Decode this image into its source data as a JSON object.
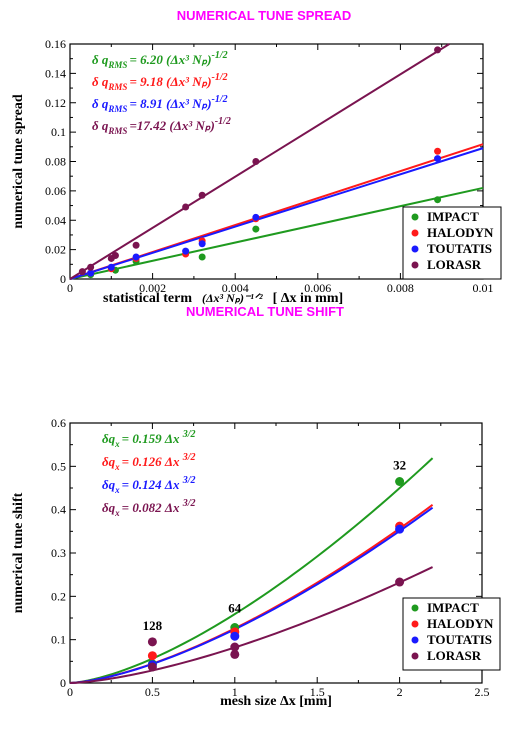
{
  "colors": {
    "IMPACT": "#1f9a1f",
    "HALODYN": "#ff1a1a",
    "TOUTATIS": "#1a1aff",
    "LORASR": "#7a1450",
    "title": "#ff00ff"
  },
  "chart_data": [
    {
      "type": "scatter",
      "title": "NUMERICAL TUNE SPREAD",
      "xlabel": "statistical term",
      "xlabel_formula": "(Δx³ Nₚ)⁻¹ᐟ²",
      "xlabel_unit": "[ Δx in  mm]",
      "ylabel": "numerical tune spread",
      "xlim": [
        0,
        0.01
      ],
      "ylim": [
        0,
        0.16
      ],
      "xticks": [
        "0",
        "0.002",
        "0.004",
        "0.006",
        "0.008",
        "0.01"
      ],
      "yticks": [
        "0",
        "0.02",
        "0.04",
        "0.06",
        "0.08",
        "0.1",
        "0.12",
        "0.14",
        "0.16"
      ],
      "grid": false,
      "legend": "lower-right",
      "annotations": [
        {
          "series": "IMPACT",
          "prefix": "δ q",
          "sub": "RMS",
          "coef": "= 6.20",
          "body": " (Δx³ Nₚ)",
          "exp": "-1/2"
        },
        {
          "series": "HALODYN",
          "prefix": "δ q",
          "sub": "RMS",
          "coef": "= 9.18",
          "body": " (Δx³ Nₚ)",
          "exp": "-1/2"
        },
        {
          "series": "TOUTATIS",
          "prefix": "δ q",
          "sub": "RMS",
          "coef": "= 8.91",
          "body": " (Δx³ Nₚ)",
          "exp": "-1/2"
        },
        {
          "series": "LORASR",
          "prefix": "δ q",
          "sub": "RMS",
          "coef": "=17.42",
          "body": " (Δx³ Nₚ)",
          "exp": "-1/2"
        }
      ],
      "series": [
        {
          "name": "IMPACT",
          "fit_slope": 6.2,
          "points": [
            [
              0.0005,
              0.003
            ],
            [
              0.0011,
              0.006
            ],
            [
              0.0016,
              0.012
            ],
            [
              0.0032,
              0.015
            ],
            [
              0.0045,
              0.034
            ],
            [
              0.0089,
              0.054
            ]
          ]
        },
        {
          "name": "HALODYN",
          "fit_slope": 9.18,
          "points": [
            [
              0.0005,
              0.004
            ],
            [
              0.001,
              0.007
            ],
            [
              0.0016,
              0.014
            ],
            [
              0.0028,
              0.017
            ],
            [
              0.0032,
              0.026
            ],
            [
              0.0045,
              0.041
            ],
            [
              0.0089,
              0.087
            ]
          ]
        },
        {
          "name": "TOUTATIS",
          "fit_slope": 8.91,
          "points": [
            [
              0.0005,
              0.004
            ],
            [
              0.001,
              0.008
            ],
            [
              0.0016,
              0.015
            ],
            [
              0.0028,
              0.019
            ],
            [
              0.0032,
              0.024
            ],
            [
              0.0045,
              0.042
            ],
            [
              0.0089,
              0.082
            ]
          ]
        },
        {
          "name": "LORASR",
          "fit_slope": 17.42,
          "points": [
            [
              0.0003,
              0.005
            ],
            [
              0.0005,
              0.008
            ],
            [
              0.001,
              0.014
            ],
            [
              0.0011,
              0.016
            ],
            [
              0.0016,
              0.023
            ],
            [
              0.0028,
              0.049
            ],
            [
              0.0032,
              0.057
            ],
            [
              0.0045,
              0.08
            ],
            [
              0.0089,
              0.156
            ]
          ]
        }
      ]
    },
    {
      "type": "scatter",
      "title": "NUMERICAL TUNE SHIFT",
      "xlabel": "mesh size  Δx  [mm]",
      "ylabel": "numerical tune shift",
      "xlim": [
        0,
        2.5
      ],
      "ylim": [
        0,
        0.6
      ],
      "xticks": [
        "0",
        "0.5",
        "1",
        "1.5",
        "2",
        "2.5"
      ],
      "yticks": [
        "0",
        "0.1",
        "0.2",
        "0.3",
        "0.4",
        "0.5",
        "0.6"
      ],
      "grid": false,
      "legend": "lower-right",
      "annotations": [
        {
          "series": "IMPACT",
          "prefix": "δq",
          "sub": "x",
          "coef": "= 0.159",
          "body": "  Δx ",
          "exp": "3/2"
        },
        {
          "series": "HALODYN",
          "prefix": "δq",
          "sub": "x",
          "coef": "= 0.126",
          "body": "  Δx ",
          "exp": "3/2"
        },
        {
          "series": "TOUTATIS",
          "prefix": "δq",
          "sub": "x",
          "coef": "= 0.124",
          "body": "  Δx ",
          "exp": "3/2"
        },
        {
          "series": "LORASR",
          "prefix": "δq",
          "sub": "x",
          "coef": "= 0.082",
          "body": "  Δx ",
          "exp": "3/2"
        }
      ],
      "point_labels": [
        {
          "text": "128",
          "x": 0.5,
          "y": 0.095
        },
        {
          "text": "64",
          "x": 1.0,
          "y": 0.135
        },
        {
          "text": "32",
          "x": 2.0,
          "y": 0.465
        }
      ],
      "series": [
        {
          "name": "IMPACT",
          "fit_coef": 0.159,
          "fit_xmax": 2.2,
          "points": [
            [
              0.5,
              0.044
            ],
            [
              1.0,
              0.128
            ],
            [
              2.0,
              0.465
            ]
          ]
        },
        {
          "name": "HALODYN",
          "fit_coef": 0.126,
          "fit_xmax": 2.2,
          "points": [
            [
              0.5,
              0.063
            ],
            [
              1.0,
              0.118
            ],
            [
              2.0,
              0.362
            ]
          ]
        },
        {
          "name": "TOUTATIS",
          "fit_coef": 0.124,
          "fit_xmax": 2.2,
          "points": [
            [
              0.5,
              0.042
            ],
            [
              1.0,
              0.108
            ],
            [
              2.0,
              0.355
            ]
          ]
        },
        {
          "name": "LORASR",
          "fit_coef": 0.082,
          "fit_xmax": 2.2,
          "points": [
            [
              0.5,
              0.095
            ],
            [
              0.5,
              0.037
            ],
            [
              1.0,
              0.083
            ],
            [
              1.0,
              0.066
            ],
            [
              2.0,
              0.233
            ]
          ]
        }
      ]
    }
  ]
}
